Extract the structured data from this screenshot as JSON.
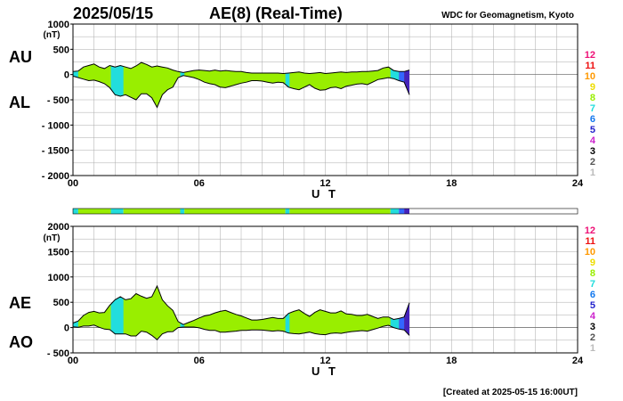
{
  "header": {
    "date": "2025/05/15",
    "title": "AE(8)  (Real-Time)",
    "organization": "WDC for Geomagnetism, Kyoto"
  },
  "footer": {
    "created": "[Created at 2025-05-15 16:00UT]"
  },
  "colors": {
    "fill": "#99ee00",
    "panel_border": "#000000",
    "grid": "#aaaaaa"
  },
  "chart_data": [
    {
      "type": "area",
      "panel": "AU/AL",
      "series_labels": [
        "AU",
        "AL"
      ],
      "ylabel": "(nT)",
      "xlabel": "U T",
      "xlim": [
        0,
        24
      ],
      "ylim": [
        -2000,
        1000
      ],
      "x_ticks": [
        "00",
        "06",
        "12",
        "18",
        "24"
      ],
      "y_ticks": [
        "1000",
        "500",
        "0",
        "- 500",
        "- 1000",
        "- 1500",
        "- 2000"
      ],
      "y_tick_values": [
        1000,
        500,
        0,
        -500,
        -1000,
        -1500,
        -2000
      ],
      "x": [
        0,
        0.25,
        0.5,
        0.75,
        1,
        1.25,
        1.5,
        1.75,
        2,
        2.25,
        2.5,
        2.75,
        3,
        3.25,
        3.5,
        3.75,
        4,
        4.25,
        4.5,
        4.75,
        5,
        5.25,
        5.5,
        5.75,
        6,
        6.25,
        6.5,
        6.75,
        7,
        7.25,
        7.5,
        7.75,
        8,
        8.25,
        8.5,
        8.75,
        9,
        9.25,
        9.5,
        9.75,
        10,
        10.25,
        10.5,
        10.75,
        11,
        11.25,
        11.5,
        11.75,
        12,
        12.25,
        12.5,
        12.75,
        13,
        13.25,
        13.5,
        13.75,
        14,
        14.25,
        14.5,
        14.75,
        15,
        15.25,
        15.5,
        15.75,
        16
      ],
      "series": [
        {
          "name": "AU",
          "values": [
            60,
            70,
            150,
            180,
            210,
            150,
            120,
            180,
            150,
            180,
            150,
            120,
            170,
            240,
            200,
            150,
            170,
            150,
            130,
            90,
            60,
            40,
            60,
            80,
            90,
            80,
            70,
            90,
            70,
            80,
            70,
            60,
            60,
            40,
            30,
            30,
            30,
            30,
            30,
            30,
            20,
            30,
            40,
            50,
            30,
            20,
            30,
            40,
            20,
            30,
            40,
            50,
            40,
            50,
            50,
            60,
            60,
            70,
            80,
            130,
            150,
            80,
            60,
            60,
            90
          ]
        },
        {
          "name": "AL",
          "values": [
            -30,
            -60,
            -90,
            -120,
            -110,
            -140,
            -180,
            -260,
            -400,
            -430,
            -400,
            -450,
            -500,
            -380,
            -380,
            -460,
            -650,
            -400,
            -300,
            -250,
            -60,
            -20,
            -40,
            -60,
            -100,
            -150,
            -180,
            -200,
            -250,
            -260,
            -230,
            -200,
            -170,
            -150,
            -120,
            -120,
            -130,
            -150,
            -170,
            -150,
            -160,
            -250,
            -280,
            -300,
            -250,
            -200,
            -270,
            -310,
            -300,
            -260,
            -250,
            -280,
            -230,
            -210,
            -190,
            -180,
            -200,
            -150,
            -100,
            -80,
            -60,
            -80,
            -120,
            -150,
            -400
          ]
        }
      ],
      "activity_bar": [
        {
          "from": 0,
          "to": 0.25,
          "color": "#22dddd"
        },
        {
          "from": 0.25,
          "to": 1.8,
          "color": "#99ee00"
        },
        {
          "from": 1.8,
          "to": 2.4,
          "color": "#22dddd"
        },
        {
          "from": 2.4,
          "to": 5.1,
          "color": "#99ee00"
        },
        {
          "from": 5.1,
          "to": 5.3,
          "color": "#22dddd"
        },
        {
          "from": 5.3,
          "to": 10.1,
          "color": "#99ee00"
        },
        {
          "from": 10.1,
          "to": 10.3,
          "color": "#22dddd"
        },
        {
          "from": 10.3,
          "to": 15.1,
          "color": "#99ee00"
        },
        {
          "from": 15.1,
          "to": 15.5,
          "color": "#22dddd"
        },
        {
          "from": 15.5,
          "to": 15.75,
          "color": "#3366ff"
        },
        {
          "from": 15.75,
          "to": 16,
          "color": "#4422bb"
        }
      ]
    },
    {
      "type": "area",
      "panel": "AE/AO",
      "series_labels": [
        "AE",
        "AO"
      ],
      "ylabel": "(nT)",
      "xlabel": "U T",
      "xlim": [
        0,
        24
      ],
      "ylim": [
        -500,
        2000
      ],
      "x_ticks": [
        "00",
        "06",
        "12",
        "18",
        "24"
      ],
      "y_ticks": [
        "2000",
        "1500",
        "1000",
        "500",
        "0",
        "- 500"
      ],
      "y_tick_values": [
        2000,
        1500,
        1000,
        500,
        0,
        -500
      ],
      "x": [
        0,
        0.25,
        0.5,
        0.75,
        1,
        1.25,
        1.5,
        1.75,
        2,
        2.25,
        2.5,
        2.75,
        3,
        3.25,
        3.5,
        3.75,
        4,
        4.25,
        4.5,
        4.75,
        5,
        5.25,
        5.5,
        5.75,
        6,
        6.25,
        6.5,
        6.75,
        7,
        7.25,
        7.5,
        7.75,
        8,
        8.25,
        8.5,
        8.75,
        9,
        9.25,
        9.5,
        9.75,
        10,
        10.25,
        10.5,
        10.75,
        11,
        11.25,
        11.5,
        11.75,
        12,
        12.25,
        12.5,
        12.75,
        13,
        13.25,
        13.5,
        13.75,
        14,
        14.25,
        14.5,
        14.75,
        15,
        15.25,
        15.5,
        15.75,
        16
      ],
      "series": [
        {
          "name": "AE",
          "values": [
            90,
            130,
            240,
            300,
            320,
            290,
            300,
            440,
            550,
            610,
            550,
            570,
            670,
            620,
            580,
            610,
            820,
            550,
            430,
            340,
            120,
            60,
            100,
            140,
            190,
            230,
            250,
            290,
            320,
            340,
            300,
            260,
            230,
            190,
            150,
            150,
            160,
            180,
            200,
            180,
            180,
            280,
            320,
            350,
            280,
            220,
            300,
            350,
            320,
            290,
            290,
            330,
            270,
            260,
            240,
            240,
            260,
            220,
            180,
            210,
            210,
            160,
            180,
            210,
            490
          ]
        },
        {
          "name": "AO",
          "values": [
            15,
            5,
            30,
            30,
            50,
            5,
            -30,
            -40,
            -125,
            -125,
            -125,
            -165,
            -165,
            -70,
            -90,
            -155,
            -240,
            -125,
            -85,
            -80,
            0,
            10,
            10,
            10,
            -5,
            -35,
            -55,
            -55,
            -90,
            -90,
            -80,
            -70,
            -55,
            -55,
            -45,
            -45,
            -50,
            -60,
            -70,
            -60,
            -70,
            -110,
            -120,
            -125,
            -110,
            -90,
            -120,
            -135,
            -140,
            -115,
            -105,
            -115,
            -95,
            -80,
            -70,
            -60,
            -70,
            -40,
            -10,
            25,
            45,
            0,
            -30,
            -45,
            -155
          ]
        }
      ]
    }
  ],
  "legend": {
    "levels": [
      "12",
      "11",
      "10",
      "9",
      "8",
      "7",
      "6",
      "5",
      "4",
      "3",
      "2",
      "1"
    ],
    "colors": [
      "#ee1177",
      "#ee1111",
      "#ff9900",
      "#eedd00",
      "#99ee00",
      "#22dddd",
      "#1177ee",
      "#2222cc",
      "#cc22cc",
      "#000000",
      "#555555",
      "#bbbbbb"
    ]
  }
}
